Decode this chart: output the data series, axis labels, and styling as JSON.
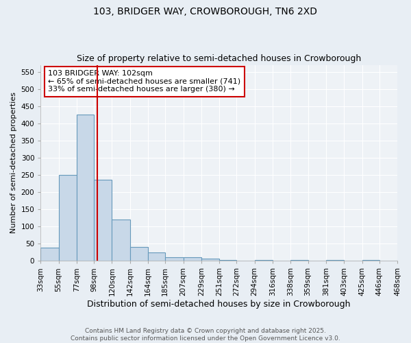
{
  "title": "103, BRIDGER WAY, CROWBOROUGH, TN6 2XD",
  "subtitle": "Size of property relative to semi-detached houses in Crowborough",
  "xlabel": "Distribution of semi-detached houses by size in Crowborough",
  "ylabel": "Number of semi-detached properties",
  "bin_edges": [
    33,
    55,
    77,
    98,
    120,
    142,
    164,
    185,
    207,
    229,
    251,
    272,
    294,
    316,
    338,
    359,
    381,
    403,
    425,
    446,
    468
  ],
  "bar_heights": [
    38,
    250,
    425,
    235,
    120,
    40,
    25,
    10,
    10,
    7,
    3,
    1,
    3,
    0,
    3,
    0,
    3,
    0,
    3,
    0,
    4
  ],
  "bar_color": "#c8d8e8",
  "bar_edge_color": "#6699bb",
  "bar_linewidth": 0.8,
  "red_line_x": 102,
  "red_line_color": "#cc0000",
  "annotation_text": "103 BRIDGER WAY: 102sqm\n← 65% of semi-detached houses are smaller (741)\n33% of semi-detached houses are larger (380) →",
  "ylim": [
    0,
    570
  ],
  "yticks": [
    0,
    50,
    100,
    150,
    200,
    250,
    300,
    350,
    400,
    450,
    500,
    550
  ],
  "background_color": "#e8eef4",
  "plot_background_color": "#eef2f6",
  "grid_color": "#ffffff",
  "footer_text": "Contains HM Land Registry data © Crown copyright and database right 2025.\nContains public sector information licensed under the Open Government Licence v3.0.",
  "title_fontsize": 10,
  "subtitle_fontsize": 9,
  "xlabel_fontsize": 9,
  "ylabel_fontsize": 8,
  "tick_fontsize": 7.5,
  "annotation_fontsize": 8,
  "footer_fontsize": 6.5
}
